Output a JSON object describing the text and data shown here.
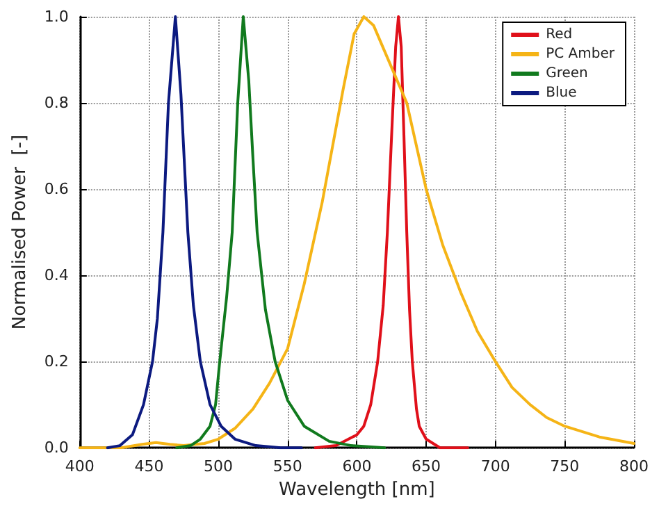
{
  "chart_data": {
    "type": "line",
    "xlabel": "Wavelength [nm]",
    "ylabel": "Normalised Power  [-]",
    "xlim": [
      400,
      800
    ],
    "xticks": [
      400,
      450,
      500,
      550,
      600,
      650,
      700,
      750,
      800
    ],
    "ylim": [
      0,
      1
    ],
    "yticks": [
      {
        "value": 0,
        "label": "0.0"
      },
      {
        "value": 0.2,
        "label": "0.2"
      },
      {
        "value": 0.4,
        "label": "0.4"
      },
      {
        "value": 0.6,
        "label": "0.6"
      },
      {
        "value": 0.8,
        "label": "0.8"
      },
      {
        "value": 1,
        "label": "1.0"
      }
    ],
    "grid": true,
    "legend": "top right",
    "marker": "none",
    "line_style": "solid",
    "series": [
      {
        "name": "Red",
        "color": "#e0101a",
        "x": [
          570,
          585,
          600,
          605,
          610,
          615,
          619,
          622,
          625,
          628,
          630,
          632,
          634,
          636,
          638,
          640,
          643,
          645,
          650,
          660,
          680
        ],
        "values": [
          0,
          0.005,
          0.03,
          0.05,
          0.1,
          0.2,
          0.33,
          0.5,
          0.72,
          0.93,
          1,
          0.93,
          0.72,
          0.5,
          0.32,
          0.2,
          0.09,
          0.05,
          0.02,
          0,
          0
        ]
      },
      {
        "name": "PC Amber",
        "color": "#f5b416",
        "x": [
          400,
          430,
          445,
          455,
          465,
          475,
          490,
          500,
          512,
          525,
          537,
          550,
          562,
          575,
          590,
          598,
          605,
          612,
          620,
          636,
          650,
          662,
          675,
          687,
          700,
          712,
          725,
          737,
          750,
          775,
          800
        ],
        "values": [
          0,
          0,
          0.008,
          0.012,
          0.008,
          0.005,
          0.01,
          0.02,
          0.045,
          0.09,
          0.15,
          0.23,
          0.38,
          0.57,
          0.83,
          0.96,
          1,
          0.98,
          0.92,
          0.8,
          0.6,
          0.47,
          0.36,
          0.27,
          0.2,
          0.14,
          0.1,
          0.07,
          0.05,
          0.025,
          0.01
        ]
      },
      {
        "name": "Green",
        "color": "#117a1e",
        "x": [
          470,
          480,
          487,
          494,
          498,
          501,
          506,
          510,
          514,
          518,
          522,
          525,
          528,
          534,
          541,
          550,
          562,
          580,
          596,
          620
        ],
        "values": [
          0,
          0.005,
          0.02,
          0.05,
          0.1,
          0.2,
          0.35,
          0.5,
          0.8,
          1,
          0.85,
          0.67,
          0.5,
          0.32,
          0.2,
          0.11,
          0.05,
          0.015,
          0.005,
          0
        ]
      },
      {
        "name": "Blue",
        "color": "#0c1a80",
        "x": [
          420,
          429,
          438,
          446,
          452.5,
          456,
          460,
          464,
          469,
          473,
          478,
          482,
          487,
          494,
          502,
          512,
          527,
          545,
          560
        ],
        "values": [
          0,
          0.005,
          0.03,
          0.1,
          0.2,
          0.3,
          0.5,
          0.8,
          1,
          0.82,
          0.5,
          0.33,
          0.2,
          0.1,
          0.05,
          0.02,
          0.005,
          0,
          0
        ]
      }
    ]
  }
}
